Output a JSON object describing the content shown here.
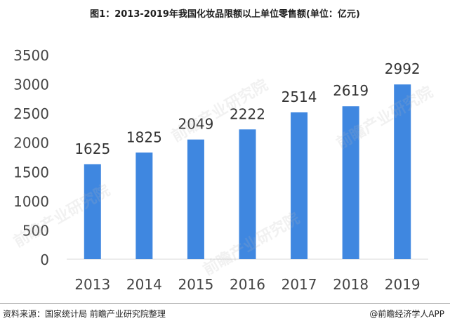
{
  "title": "图1：2013-2019年我国化妆品限额以上单位零售额(单位：亿元)",
  "source": "资料来源：国家统计局 前瞻产业研究院整理",
  "credit": "@前瞻经济学人APP",
  "watermark": "前瞻产业研究院",
  "colors": {
    "bar": "#3f87e0",
    "tick": "#444444",
    "label": "#333333"
  },
  "chart_data": {
    "type": "bar",
    "title": "图1：2013-2019年我国化妆品限额以上单位零售额(单位：亿元)",
    "categories": [
      "2013",
      "2014",
      "2015",
      "2016",
      "2017",
      "2018",
      "2019"
    ],
    "values": [
      1625,
      1825,
      2049,
      2222,
      2514,
      2619,
      2992
    ],
    "ylim": [
      0,
      3500
    ],
    "yticks": [
      0,
      500,
      1000,
      1500,
      2000,
      2500,
      3000,
      3500
    ],
    "grid": false,
    "legend": "none"
  }
}
